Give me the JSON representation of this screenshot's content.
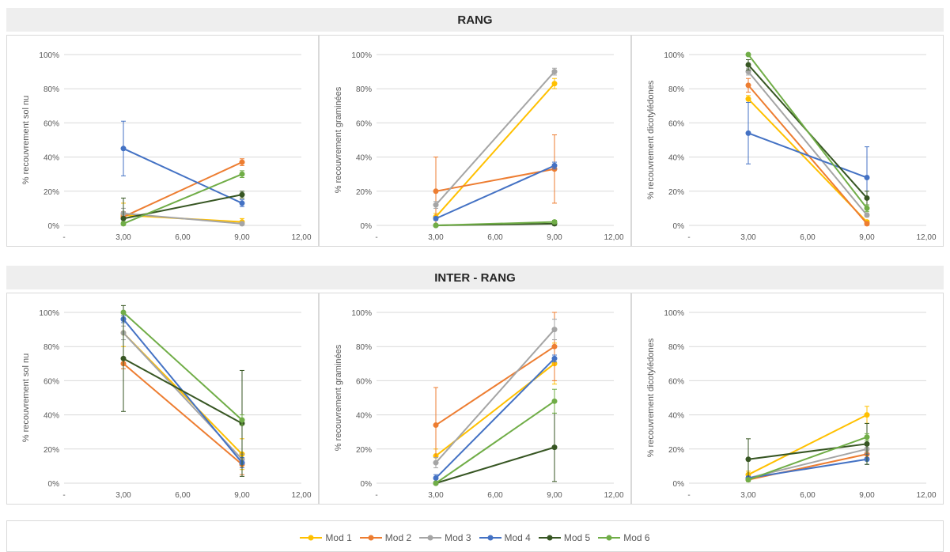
{
  "sections": {
    "top_title": "RANG",
    "bottom_title": "INTER - RANG"
  },
  "series_names": [
    "Mod 1",
    "Mod 2",
    "Mod 3",
    "Mod 4",
    "Mod 5",
    "Mod 6"
  ],
  "series_colors": [
    "#FFC000",
    "#ED7D31",
    "#A5A5A5",
    "#4472C4",
    "#375623",
    "#70AD47"
  ],
  "chart_data": [
    {
      "type": "scatter",
      "title": "",
      "xlabel": "",
      "ylabel": "% recouvrement sol nu",
      "x_ticks": [
        "-",
        "3,00",
        "6,00",
        "9,00",
        "12,00"
      ],
      "xlim": [
        0,
        12
      ],
      "y_ticks": [
        "0%",
        "20%",
        "40%",
        "60%",
        "80%",
        "100%"
      ],
      "ylim": [
        0,
        100
      ],
      "x": [
        3,
        9
      ],
      "series": [
        {
          "name": "Mod 1",
          "values": [
            6,
            2
          ],
          "err": [
            7,
            2
          ]
        },
        {
          "name": "Mod 2",
          "values": [
            5,
            37
          ],
          "err": [
            3,
            2
          ]
        },
        {
          "name": "Mod 3",
          "values": [
            7,
            1
          ],
          "err": [
            3,
            1
          ]
        },
        {
          "name": "Mod 4",
          "values": [
            45,
            13
          ],
          "err": [
            16,
            2
          ]
        },
        {
          "name": "Mod 5",
          "values": [
            4,
            18
          ],
          "err": [
            12,
            2
          ]
        },
        {
          "name": "Mod 6",
          "values": [
            1,
            30
          ],
          "err": [
            1,
            2
          ]
        }
      ]
    },
    {
      "type": "scatter",
      "title": "",
      "xlabel": "",
      "ylabel": "% recouvrement graminées",
      "x_ticks": [
        "-",
        "3,00",
        "6,00",
        "9,00",
        "12,00"
      ],
      "xlim": [
        0,
        12
      ],
      "y_ticks": [
        "0%",
        "20%",
        "40%",
        "60%",
        "80%",
        "100%"
      ],
      "ylim": [
        0,
        100
      ],
      "x": [
        3,
        9
      ],
      "series": [
        {
          "name": "Mod 1",
          "values": [
            5,
            83
          ],
          "err": [
            2,
            3
          ]
        },
        {
          "name": "Mod 2",
          "values": [
            20,
            33
          ],
          "err": [
            20,
            20
          ]
        },
        {
          "name": "Mod 3",
          "values": [
            12,
            90
          ],
          "err": [
            2,
            2
          ]
        },
        {
          "name": "Mod 4",
          "values": [
            4,
            35
          ],
          "err": [
            1,
            2
          ]
        },
        {
          "name": "Mod 5",
          "values": [
            0,
            1
          ],
          "err": [
            0,
            1
          ]
        },
        {
          "name": "Mod 6",
          "values": [
            0,
            2
          ],
          "err": [
            0,
            1
          ]
        }
      ]
    },
    {
      "type": "scatter",
      "title": "",
      "xlabel": "",
      "ylabel": "% recouvrement dicotylédones",
      "x_ticks": [
        "-",
        "3,00",
        "6,00",
        "9,00",
        "12,00"
      ],
      "xlim": [
        0,
        12
      ],
      "y_ticks": [
        "0%",
        "20%",
        "40%",
        "60%",
        "80%",
        "100%"
      ],
      "ylim": [
        0,
        100
      ],
      "x": [
        3,
        9
      ],
      "series": [
        {
          "name": "Mod 1",
          "values": [
            74,
            2
          ],
          "err": [
            2,
            1
          ]
        },
        {
          "name": "Mod 2",
          "values": [
            82,
            1
          ],
          "err": [
            4,
            1
          ]
        },
        {
          "name": "Mod 3",
          "values": [
            90,
            6
          ],
          "err": [
            2,
            1
          ]
        },
        {
          "name": "Mod 4",
          "values": [
            54,
            28
          ],
          "err": [
            18,
            18
          ]
        },
        {
          "name": "Mod 5",
          "values": [
            94,
            16
          ],
          "err": [
            3,
            4
          ]
        },
        {
          "name": "Mod 6",
          "values": [
            100,
            10
          ],
          "err": [
            0,
            2
          ]
        }
      ]
    },
    {
      "type": "scatter",
      "title": "",
      "xlabel": "",
      "ylabel": "% recouvrement sol nu",
      "x_ticks": [
        "-",
        "3,00",
        "6,00",
        "9,00",
        "12,00"
      ],
      "xlim": [
        0,
        12
      ],
      "y_ticks": [
        "0%",
        "20%",
        "40%",
        "60%",
        "80%",
        "100%"
      ],
      "ylim": [
        0,
        100
      ],
      "x": [
        3,
        9
      ],
      "series": [
        {
          "name": "Mod 1",
          "values": [
            88,
            17
          ],
          "err": [
            8,
            9
          ]
        },
        {
          "name": "Mod 2",
          "values": [
            70,
            11
          ],
          "err": [
            3,
            6
          ]
        },
        {
          "name": "Mod 3",
          "values": [
            88,
            14
          ],
          "err": [
            4,
            3
          ]
        },
        {
          "name": "Mod 4",
          "values": [
            96,
            12
          ],
          "err": [
            2,
            3
          ]
        },
        {
          "name": "Mod 5",
          "values": [
            73,
            35
          ],
          "err": [
            31,
            31
          ]
        },
        {
          "name": "Mod 6",
          "values": [
            100,
            37
          ],
          "err": [
            0,
            3
          ]
        }
      ]
    },
    {
      "type": "scatter",
      "title": "",
      "xlabel": "",
      "ylabel": "% recouvrement graminées",
      "x_ticks": [
        "-",
        "3,00",
        "6,00",
        "9,00",
        "12,00"
      ],
      "xlim": [
        0,
        12
      ],
      "y_ticks": [
        "0%",
        "20%",
        "40%",
        "60%",
        "80%",
        "100%"
      ],
      "ylim": [
        0,
        100
      ],
      "x": [
        3,
        9
      ],
      "series": [
        {
          "name": "Mod 1",
          "values": [
            16,
            70
          ],
          "err": [
            4,
            12
          ]
        },
        {
          "name": "Mod 2",
          "values": [
            34,
            80
          ],
          "err": [
            22,
            20
          ]
        },
        {
          "name": "Mod 3",
          "values": [
            12,
            90
          ],
          "err": [
            3,
            6
          ]
        },
        {
          "name": "Mod 4",
          "values": [
            3,
            73
          ],
          "err": [
            2,
            2
          ]
        },
        {
          "name": "Mod 5",
          "values": [
            0,
            21
          ],
          "err": [
            0,
            20
          ]
        },
        {
          "name": "Mod 6",
          "values": [
            0,
            48
          ],
          "err": [
            0,
            7
          ]
        }
      ]
    },
    {
      "type": "scatter",
      "title": "",
      "xlabel": "",
      "ylabel": "% recouvrement dicotylédones",
      "x_ticks": [
        "-",
        "3,00",
        "6,00",
        "9,00",
        "12,00"
      ],
      "xlim": [
        0,
        12
      ],
      "y_ticks": [
        "0%",
        "20%",
        "40%",
        "60%",
        "80%",
        "100%"
      ],
      "ylim": [
        0,
        100
      ],
      "x": [
        3,
        9
      ],
      "series": [
        {
          "name": "Mod 1",
          "values": [
            5,
            40
          ],
          "err": [
            2,
            5
          ]
        },
        {
          "name": "Mod 2",
          "values": [
            2,
            17
          ],
          "err": [
            1,
            2
          ]
        },
        {
          "name": "Mod 3",
          "values": [
            3,
            20
          ],
          "err": [
            1,
            2
          ]
        },
        {
          "name": "Mod 4",
          "values": [
            3,
            14
          ],
          "err": [
            1,
            3
          ]
        },
        {
          "name": "Mod 5",
          "values": [
            14,
            23
          ],
          "err": [
            12,
            12
          ]
        },
        {
          "name": "Mod 6",
          "values": [
            2,
            27
          ],
          "err": [
            1,
            2
          ]
        }
      ]
    }
  ]
}
